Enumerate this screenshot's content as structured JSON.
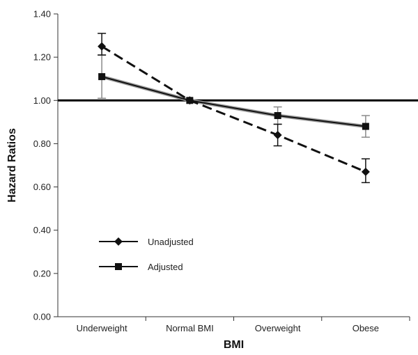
{
  "chart_data": {
    "type": "line",
    "categories": [
      "Underweight",
      "Normal BMI",
      "Overweight",
      "Obese"
    ],
    "xlabel": "BMI",
    "ylabel": "Hazard Ratios",
    "ylim": [
      0,
      1.4
    ],
    "yticks": [
      0.0,
      0.2,
      0.4,
      0.6,
      0.8,
      1.0,
      1.2,
      1.4
    ],
    "ytick_labels": [
      "0.00",
      "0.20",
      "0.40",
      "0.60",
      "0.80",
      "1.00",
      "1.20",
      "1.40"
    ],
    "reference_line": 1.0,
    "grid": false,
    "legend_position": "lower-left",
    "series": [
      {
        "name": "Unadjusted",
        "values": [
          1.25,
          1.0,
          0.84,
          0.67
        ],
        "error_low": [
          1.21,
          1.0,
          0.79,
          0.62
        ],
        "error_high": [
          1.31,
          1.0,
          0.89,
          0.73
        ],
        "marker": "diamond",
        "line_style": "dashed",
        "color": "#111111"
      },
      {
        "name": "Adjusted",
        "values": [
          1.11,
          1.0,
          0.93,
          0.88
        ],
        "error_low": [
          1.01,
          1.0,
          0.89,
          0.83
        ],
        "error_high": [
          1.21,
          1.0,
          0.97,
          0.93
        ],
        "marker": "square",
        "line_style": "solid",
        "color": "#111111",
        "error_color": "#8a8a8a"
      }
    ]
  }
}
